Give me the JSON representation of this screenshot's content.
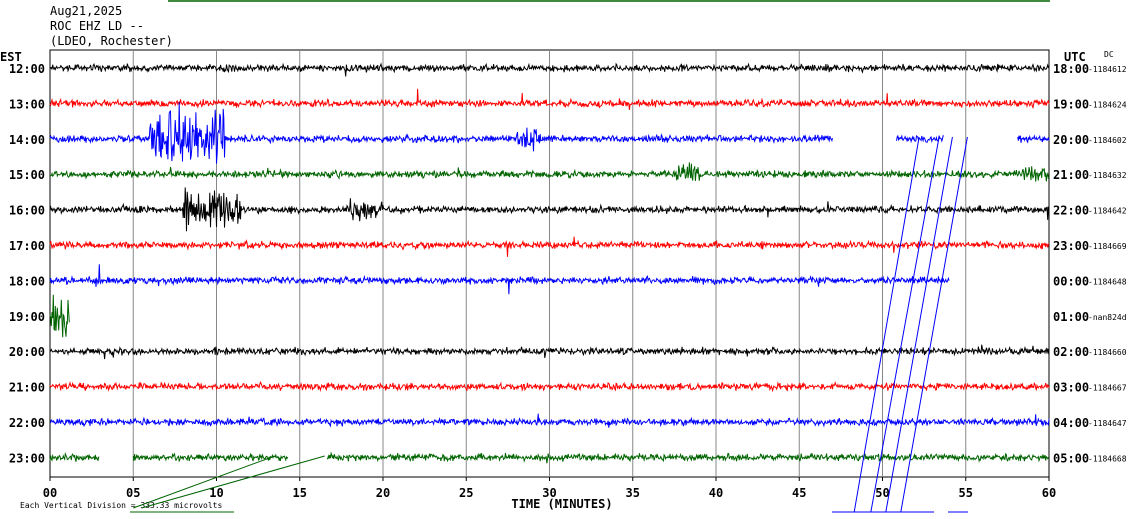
{
  "header": {
    "date": "Aug21,2025",
    "station": "ROC EHZ LD --",
    "network": "(LDEO, Rochester)"
  },
  "chart_data": {
    "type": "line",
    "title": "",
    "xlabel": "TIME (MINUTES)",
    "xlim": [
      0,
      60
    ],
    "x_ticks": [
      "00",
      "05",
      "10",
      "15",
      "20",
      "25",
      "30",
      "35",
      "40",
      "45",
      "50",
      "55",
      "60"
    ],
    "left_axis_label": "EST",
    "right_axis_label": "UTC",
    "dc_label": "DC",
    "rows": [
      {
        "est": "12:00",
        "utc": "18:00",
        "dc": "-1184612",
        "color": "#000000"
      },
      {
        "est": "13:00",
        "utc": "19:00",
        "dc": "-1184624",
        "color": "#ff0000"
      },
      {
        "est": "14:00",
        "utc": "20:00",
        "dc": "-1184602",
        "color": "#0000ff"
      },
      {
        "est": "15:00",
        "utc": "21:00",
        "dc": "-1184632",
        "color": "#006400"
      },
      {
        "est": "16:00",
        "utc": "22:00",
        "dc": "-1184642",
        "color": "#000000"
      },
      {
        "est": "17:00",
        "utc": "23:00",
        "dc": "-1184669",
        "color": "#ff0000"
      },
      {
        "est": "18:00",
        "utc": "00:00",
        "dc": "-1184648",
        "color": "#0000ff"
      },
      {
        "est": "19:00",
        "utc": "01:00",
        "dc": "-nan824d",
        "color": "#006400"
      },
      {
        "est": "20:00",
        "utc": "02:00",
        "dc": "-1184660",
        "color": "#000000"
      },
      {
        "est": "21:00",
        "utc": "03:00",
        "dc": "-1184667",
        "color": "#ff0000"
      },
      {
        "est": "22:00",
        "utc": "04:00",
        "dc": "-1184647",
        "color": "#0000ff"
      },
      {
        "est": "23:00",
        "utc": "05:00",
        "dc": "-1184668",
        "color": "#006400"
      }
    ],
    "grid": true,
    "scale_note": "Each Vertical Division = 333.33 microvolts"
  }
}
